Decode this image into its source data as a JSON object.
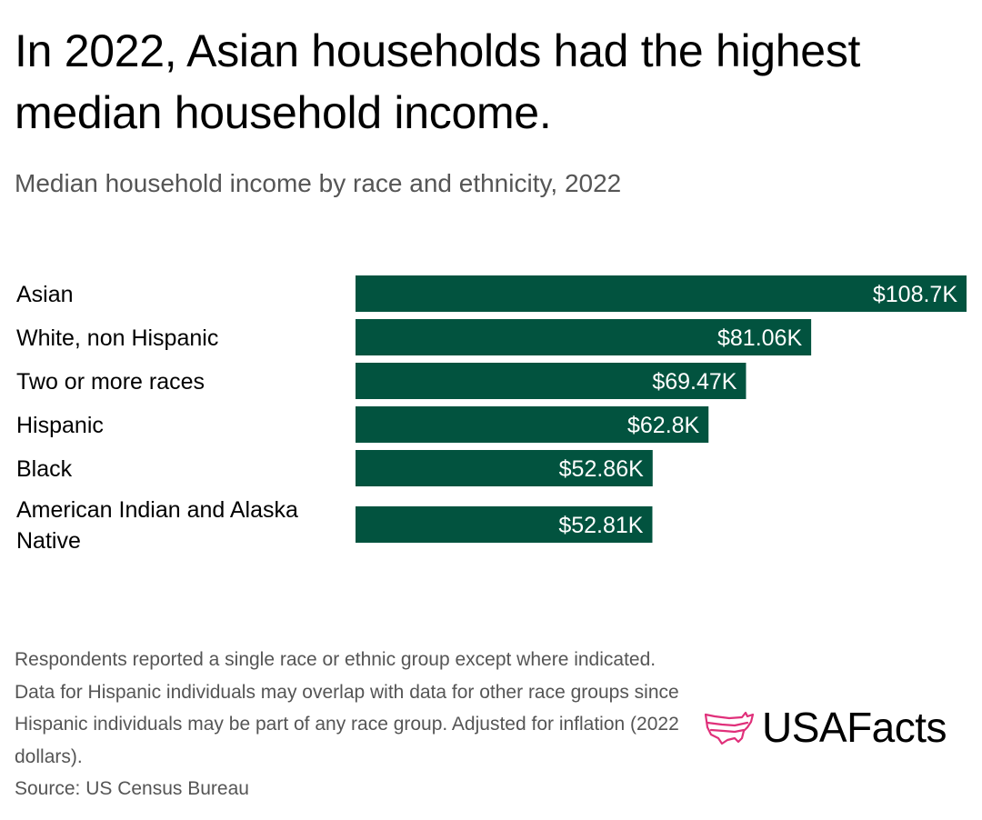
{
  "header": {
    "title": "In 2022, Asian households had the highest median household income.",
    "subtitle": "Median household income by race and ethnicity, 2022"
  },
  "chart_data": {
    "type": "bar",
    "orientation": "horizontal",
    "categories": [
      "Asian",
      "White, non Hispanic",
      "Two or more races",
      "Hispanic",
      "Black",
      "American Indian and Alaska Native"
    ],
    "values": [
      108700,
      81060,
      69470,
      62800,
      52860,
      52810
    ],
    "data_labels": [
      "$108.7K",
      "$81.06K",
      "$69.47K",
      "$62.8K",
      "$52.86K",
      "$52.81K"
    ],
    "title": "Median household income by race and ethnicity, 2022",
    "xlabel": "",
    "ylabel": "",
    "xlim": [
      0,
      108700
    ],
    "grid": false,
    "legend": "none",
    "bar_color": "#02533F",
    "label_color": "#ffffff"
  },
  "footer": {
    "note": "Respondents reported a single race or ethnic group except where indicated. Data for Hispanic individuals may overlap with data for other race groups since Hispanic individuals may be part of any race group. Adjusted for inflation (2022 dollars).",
    "source": "Source: US Census Bureau"
  },
  "logo": {
    "text": "USAFacts",
    "icon": "usa-map-icon",
    "icon_color": "#E0307A"
  }
}
